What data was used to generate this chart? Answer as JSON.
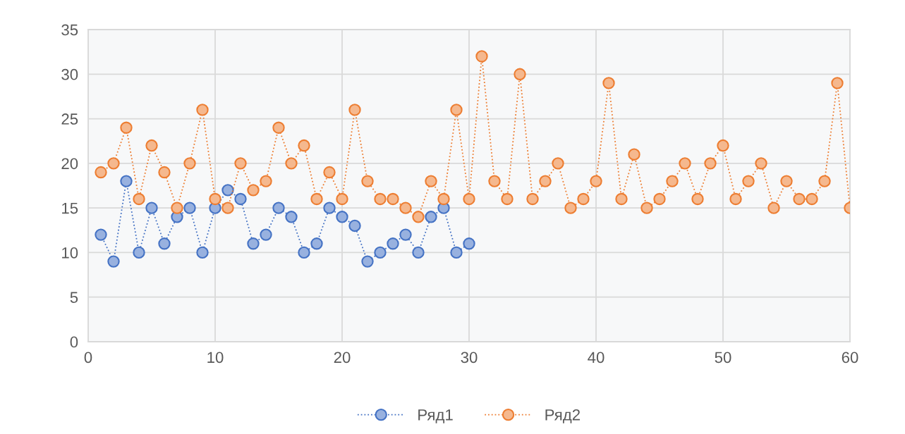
{
  "chart_data": {
    "type": "line",
    "x": [
      1,
      2,
      3,
      4,
      5,
      6,
      7,
      8,
      9,
      10,
      11,
      12,
      13,
      14,
      15,
      16,
      17,
      18,
      19,
      20,
      21,
      22,
      23,
      24,
      25,
      26,
      27,
      28,
      29,
      30,
      31,
      32,
      33,
      34,
      35,
      36,
      37,
      38,
      39,
      40,
      41,
      42,
      43,
      44,
      45,
      46,
      47,
      48,
      49,
      50,
      51,
      52,
      53,
      54,
      55,
      56,
      57,
      58,
      59,
      60
    ],
    "series": [
      {
        "name": "Ряд1",
        "color": "#4472c4",
        "x": [
          1,
          2,
          3,
          4,
          5,
          6,
          7,
          8,
          9,
          10,
          11,
          12,
          13,
          14,
          15,
          16,
          17,
          18,
          19,
          20,
          21,
          22,
          23,
          24,
          25,
          26,
          27,
          28,
          29,
          30
        ],
        "values": [
          12,
          9,
          18,
          10,
          15,
          11,
          14,
          15,
          10,
          15,
          17,
          16,
          11,
          12,
          15,
          14,
          10,
          11,
          15,
          14,
          13,
          9,
          10,
          11,
          12,
          10,
          14,
          15,
          10,
          11
        ]
      },
      {
        "name": "Ряд2",
        "color": "#ed7d31",
        "values": [
          19,
          20,
          24,
          16,
          22,
          19,
          15,
          20,
          26,
          16,
          15,
          20,
          17,
          18,
          24,
          20,
          22,
          16,
          19,
          16,
          26,
          18,
          16,
          16,
          15,
          14,
          18,
          16,
          26,
          16,
          32,
          18,
          16,
          30,
          16,
          18,
          20,
          15,
          16,
          18,
          29,
          16,
          21,
          15,
          16,
          18,
          20,
          16,
          20,
          22,
          16,
          18,
          20,
          15,
          18,
          16,
          16,
          18,
          29,
          15
        ]
      }
    ],
    "xlim": [
      0,
      60
    ],
    "xticks": [
      0,
      10,
      20,
      30,
      40,
      50,
      60
    ],
    "ylim": [
      0,
      35
    ],
    "yticks": [
      0,
      5,
      10,
      15,
      20,
      25,
      30,
      35
    ],
    "grid": true,
    "legend": "bottom",
    "marker": "circle",
    "line_style": "dotted"
  }
}
